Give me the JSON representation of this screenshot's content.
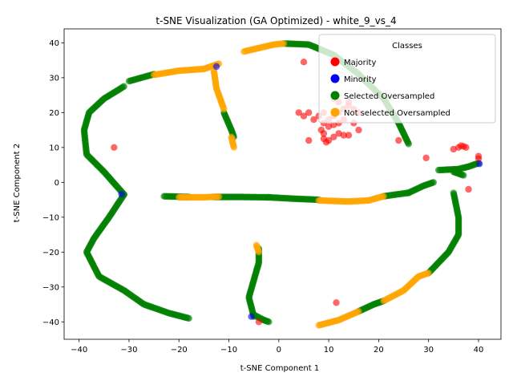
{
  "chart_data": {
    "type": "scatter",
    "title": "t-SNE Visualization (GA Optimized) - white_9_vs_4",
    "xlabel": "t-SNE Component 1",
    "ylabel": "t-SNE Component 2",
    "xlim": [
      -43,
      44.5
    ],
    "ylim": [
      -45,
      44
    ],
    "xticks": [
      -40,
      -30,
      -20,
      -10,
      0,
      10,
      20,
      30,
      40
    ],
    "yticks": [
      -40,
      -30,
      -20,
      -10,
      0,
      10,
      20,
      30,
      40
    ],
    "legend": {
      "title": "Classes",
      "position": "top-right",
      "entries": [
        "Majority",
        "Minority",
        "Selected Oversampled",
        "Not selected Oversampled"
      ]
    },
    "colors": {
      "Majority": "#ff0000",
      "Minority": "#0000ff",
      "Selected Oversampled": "#008000",
      "Not selected Oversampled": "#ffa500"
    },
    "series": [
      {
        "name": "Selected Oversampled",
        "segments": [
          [
            [
              -31,
              -3.5
            ],
            [
              -35,
              3
            ],
            [
              -38.5,
              8
            ],
            [
              -39,
              15
            ],
            [
              -38,
              20
            ],
            [
              -35,
              24
            ],
            [
              -31,
              27.5
            ]
          ],
          [
            [
              -31,
              -3.5
            ],
            [
              -34,
              -10
            ],
            [
              -37,
              -16
            ],
            [
              -38.5,
              -20
            ],
            [
              -36,
              -27
            ],
            [
              -31,
              -31
            ],
            [
              -27,
              -35
            ],
            [
              -22,
              -37.5
            ],
            [
              -18,
              -39
            ]
          ],
          [
            [
              -30,
              29
            ],
            [
              -25,
              31
            ]
          ],
          [
            [
              -11,
              20
            ],
            [
              -9.5,
              15
            ],
            [
              -9,
              13
            ]
          ],
          [
            [
              -23,
              -4
            ],
            [
              -18,
              -4.2
            ]
          ],
          [
            [
              -13,
              -4.2
            ],
            [
              -8,
              -4.2
            ],
            [
              -2,
              -4.3
            ]
          ],
          [
            [
              -2,
              -4.3
            ],
            [
              3,
              -4.7
            ],
            [
              8,
              -5
            ]
          ],
          [
            [
              21,
              -4
            ],
            [
              26,
              -3
            ]
          ],
          [
            [
              26,
              -3
            ],
            [
              29,
              -1
            ],
            [
              31,
              0
            ]
          ],
          [
            [
              1,
              39.8
            ],
            [
              6,
              39.5
            ],
            [
              11,
              36.5
            ],
            [
              16,
              31
            ],
            [
              21,
              24
            ],
            [
              24,
              17
            ],
            [
              26,
              11
            ]
          ],
          [
            [
              32,
              3.5
            ],
            [
              36,
              3.8
            ],
            [
              38,
              4.5
            ],
            [
              40,
              5.5
            ]
          ],
          [
            [
              35,
              3
            ],
            [
              37,
              2
            ]
          ],
          [
            [
              35,
              -3
            ],
            [
              36,
              -10
            ],
            [
              36,
              -15
            ],
            [
              34,
              -20
            ],
            [
              32,
              -23
            ],
            [
              30,
              -26
            ]
          ],
          [
            [
              -5,
              -38.5
            ],
            [
              -6,
              -33
            ],
            [
              -5,
              -28
            ],
            [
              -4,
              -23
            ],
            [
              -4,
              -19
            ]
          ],
          [
            [
              -5,
              -38
            ],
            [
              -3,
              -39.5
            ],
            [
              -2,
              -40
            ]
          ],
          [
            [
              16,
              -37
            ],
            [
              19,
              -35
            ],
            [
              21,
              -34
            ]
          ]
        ]
      },
      {
        "name": "Not selected Oversampled",
        "segments": [
          [
            [
              -25,
              30.8
            ],
            [
              -20,
              32
            ],
            [
              -15,
              32.5
            ],
            [
              -12,
              34
            ]
          ],
          [
            [
              -13,
              32
            ],
            [
              -12.5,
              27
            ],
            [
              -11,
              21
            ]
          ],
          [
            [
              -9.5,
              13
            ],
            [
              -9,
              10
            ]
          ],
          [
            [
              -20,
              -4.3
            ],
            [
              -15,
              -4.3
            ],
            [
              -12,
              -4.1
            ]
          ],
          [
            [
              8,
              -5.2
            ],
            [
              14,
              -5.5
            ],
            [
              18,
              -5.2
            ],
            [
              21,
              -4
            ]
          ],
          [
            [
              -7,
              37.5
            ],
            [
              -4,
              38.5
            ],
            [
              -1,
              39.5
            ],
            [
              1,
              39.8
            ]
          ],
          [
            [
              -4,
              -20
            ],
            [
              -4.5,
              -18
            ]
          ],
          [
            [
              8,
              -41
            ],
            [
              12,
              -39.5
            ],
            [
              16,
              -37
            ]
          ],
          [
            [
              21,
              -34
            ],
            [
              25,
              -31
            ],
            [
              28,
              -27
            ],
            [
              30,
              -26
            ]
          ]
        ]
      },
      {
        "name": "Majority",
        "points": [
          [
            5,
            34.5
          ],
          [
            6,
            20
          ],
          [
            8,
            19
          ],
          [
            9,
            20
          ],
          [
            10,
            18
          ],
          [
            11,
            19
          ],
          [
            12,
            20
          ],
          [
            13,
            21
          ],
          [
            14,
            22
          ],
          [
            15,
            21
          ],
          [
            16,
            20
          ],
          [
            11,
            24
          ],
          [
            12,
            23
          ],
          [
            14,
            23
          ],
          [
            7,
            18
          ],
          [
            9,
            17
          ],
          [
            10,
            16
          ],
          [
            11,
            16.5
          ],
          [
            12,
            17
          ],
          [
            13,
            18
          ],
          [
            4,
            20
          ],
          [
            5,
            19
          ],
          [
            9,
            14
          ],
          [
            9,
            12.5
          ],
          [
            10,
            12
          ],
          [
            11,
            13
          ],
          [
            12,
            14
          ],
          [
            13,
            13.5
          ],
          [
            14,
            13.5
          ],
          [
            15,
            17
          ],
          [
            16,
            15
          ],
          [
            8.5,
            15
          ],
          [
            6,
            12
          ],
          [
            9.5,
            11.5
          ],
          [
            -33,
            10
          ],
          [
            24,
            12
          ],
          [
            29.5,
            7
          ],
          [
            35,
            9.5
          ],
          [
            36,
            10
          ],
          [
            36.5,
            10.5
          ],
          [
            37,
            10.3
          ],
          [
            37.5,
            10
          ],
          [
            40,
            7.5
          ],
          [
            40,
            6.8
          ],
          [
            38,
            -2
          ],
          [
            11.5,
            -34.5
          ],
          [
            -4,
            -40
          ]
        ]
      },
      {
        "name": "Minority",
        "points": [
          [
            -12.5,
            33.2
          ],
          [
            -31.5,
            -3.4
          ],
          [
            40.2,
            5.3
          ],
          [
            -5.5,
            -38.5
          ]
        ]
      }
    ]
  }
}
